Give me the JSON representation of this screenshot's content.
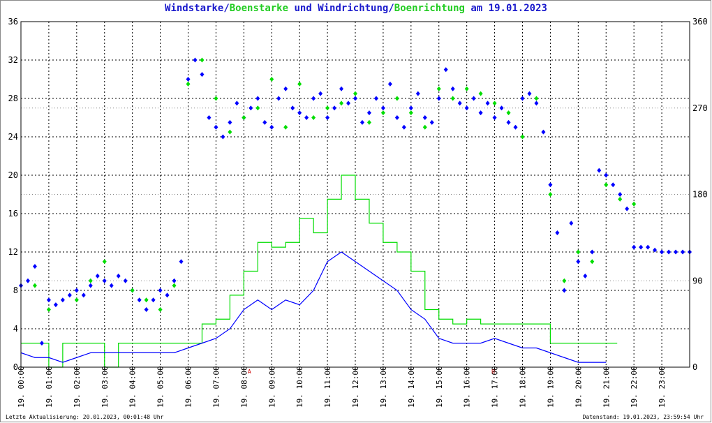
{
  "title": {
    "parts": [
      {
        "text": "Windstarke",
        "color": "#1a1acc"
      },
      {
        "text": "/",
        "color": "#1a1acc"
      },
      {
        "text": "Boenstarke",
        "color": "#22cc22"
      },
      {
        "text": " und ",
        "color": "#1a1acc"
      },
      {
        "text": "Windrichtung",
        "color": "#1a1acc"
      },
      {
        "text": "/",
        "color": "#1a1acc"
      },
      {
        "text": "Boenrichtung",
        "color": "#22cc22"
      },
      {
        "text": " am 19.01.2023",
        "color": "#1a1acc"
      }
    ]
  },
  "footer": {
    "left": "Letzte Aktualisierung: 20.01.2023, 00:01:48 Uhr",
    "right": "Datenstand: 19.01.2023, 23:59:54 Uhr"
  },
  "colors": {
    "wind": "#0000ff",
    "gust": "#00dd00",
    "grid": "#000000",
    "marker": "#cc0000"
  },
  "chart_data": {
    "type": "line",
    "x_ticks": [
      "19. 00:00",
      "19. 01:00",
      "19. 02:00",
      "19. 03:00",
      "19. 04:00",
      "19. 05:00",
      "19. 06:00",
      "19. 07:00",
      "19. 08:00",
      "19. 09:00",
      "19. 10:00",
      "19. 11:00",
      "19. 12:00",
      "19. 13:00",
      "19. 14:00",
      "19. 15:00",
      "19. 16:00",
      "19. 17:00",
      "19. 18:00",
      "19. 19:00",
      "19. 20:00",
      "19. 21:00",
      "19. 22:00",
      "19. 23:00"
    ],
    "xlim_hours": [
      0,
      24
    ],
    "y_left": {
      "min": 0,
      "max": 36,
      "ticks": [
        0,
        4,
        8,
        12,
        16,
        20,
        24,
        28,
        32,
        36
      ]
    },
    "y_right": {
      "min": 0,
      "max": 360,
      "ticks": [
        0,
        90,
        180,
        270,
        360
      ]
    },
    "grid": true,
    "markers": [
      {
        "label": "A",
        "hour": 8.2
      },
      {
        "label": "U",
        "hour": 16.95
      }
    ],
    "series": [
      {
        "name": "Windstarke",
        "axis": "left",
        "style": "line",
        "x": [
          0,
          0.5,
          1,
          1.5,
          2,
          2.5,
          3,
          3.5,
          4,
          4.5,
          5,
          5.5,
          6,
          6.5,
          7,
          7.5,
          8,
          8.5,
          9,
          9.5,
          10,
          10.5,
          11,
          11.5,
          12,
          12.5,
          13,
          13.5,
          14,
          14.5,
          15,
          15.5,
          16,
          16.5,
          17,
          17.5,
          18,
          18.5,
          19,
          19.5,
          20,
          20.5,
          21
        ],
        "y": [
          1.5,
          1,
          1,
          0.5,
          1,
          1.5,
          1.5,
          1.5,
          1.5,
          1.5,
          1.5,
          1.5,
          2,
          2.5,
          3,
          4,
          6,
          7,
          6,
          7,
          6.5,
          8,
          11,
          12,
          11,
          10,
          9,
          8,
          6,
          5,
          3,
          2.5,
          2.5,
          2.5,
          3,
          2.5,
          2,
          2,
          1.5,
          1,
          0.5,
          0.5,
          0.5
        ]
      },
      {
        "name": "Boenstarke",
        "axis": "left",
        "style": "step",
        "x": [
          0,
          0.5,
          1,
          1.5,
          2,
          2.5,
          3,
          3.5,
          4,
          4.5,
          5,
          5.5,
          6,
          6.5,
          7,
          7.5,
          8,
          8.5,
          9,
          9.5,
          10,
          10.5,
          11,
          11.5,
          12,
          12.5,
          13,
          13.5,
          14,
          14.5,
          15,
          15.5,
          16,
          16.5,
          17,
          17.5,
          18,
          18.5,
          19,
          19.5,
          20,
          20.5,
          21,
          21.4
        ],
        "y": [
          2.5,
          2.5,
          0,
          2.5,
          2.5,
          2.5,
          0,
          2.5,
          2.5,
          2.5,
          2.5,
          2.5,
          2.5,
          4.5,
          5,
          7.5,
          10,
          13,
          12.5,
          13,
          15.5,
          14,
          17.5,
          20,
          17.5,
          15,
          13,
          12,
          10,
          6,
          5,
          4.5,
          5,
          4.5,
          4.5,
          4.5,
          4.5,
          4.5,
          2.5,
          2.5,
          2.5,
          2.5,
          2.5,
          2.5
        ]
      },
      {
        "name": "Windrichtung",
        "axis": "right",
        "style": "markers",
        "x": [
          0,
          0.25,
          0.5,
          0.75,
          1,
          1.25,
          1.5,
          1.75,
          2,
          2.25,
          2.5,
          2.75,
          3,
          3.25,
          3.5,
          3.75,
          4,
          4.25,
          4.5,
          4.75,
          5,
          5.25,
          5.5,
          5.75,
          6,
          6.25,
          6.5,
          6.75,
          7,
          7.25,
          7.5,
          7.75,
          8,
          8.25,
          8.5,
          8.75,
          9,
          9.25,
          9.5,
          9.75,
          10,
          10.25,
          10.5,
          10.75,
          11,
          11.25,
          11.5,
          11.75,
          12,
          12.25,
          12.5,
          12.75,
          13,
          13.25,
          13.5,
          13.75,
          14,
          14.25,
          14.5,
          14.75,
          15,
          15.25,
          15.5,
          15.75,
          16,
          16.25,
          16.5,
          16.75,
          17,
          17.25,
          17.5,
          17.75,
          18,
          18.25,
          18.5,
          18.75,
          19,
          19.25,
          19.5,
          19.75,
          20,
          20.25,
          20.5,
          20.75,
          21,
          21.25,
          21.5,
          21.75,
          22,
          22.25,
          22.5,
          22.75,
          23,
          23.25,
          23.5,
          23.75,
          24
        ],
        "y": [
          85,
          90,
          105,
          25,
          70,
          65,
          70,
          75,
          80,
          75,
          85,
          95,
          90,
          85,
          95,
          90,
          80,
          70,
          60,
          70,
          80,
          75,
          90,
          110,
          300,
          320,
          305,
          260,
          250,
          240,
          255,
          275,
          260,
          270,
          280,
          255,
          250,
          280,
          290,
          270,
          265,
          260,
          280,
          285,
          260,
          270,
          290,
          275,
          280,
          255,
          265,
          280,
          270,
          295,
          260,
          250,
          270,
          285,
          260,
          255,
          280,
          310,
          290,
          275,
          270,
          280,
          265,
          275,
          260,
          270,
          255,
          250,
          280,
          285,
          275,
          245,
          190,
          140,
          80,
          150,
          110,
          95,
          120,
          205,
          200,
          190,
          180,
          165,
          125,
          125,
          125,
          122,
          120,
          120,
          120,
          120,
          120
        ]
      },
      {
        "name": "Boenrichtung",
        "axis": "right",
        "style": "markers",
        "x": [
          0.5,
          1,
          2,
          2.5,
          3,
          4,
          4.5,
          5,
          5.5,
          6,
          6.5,
          7,
          7.5,
          8,
          8.5,
          9,
          9.5,
          10,
          10.5,
          11,
          11.5,
          12,
          12.5,
          13,
          13.5,
          14,
          14.5,
          15,
          15.5,
          16,
          16.5,
          17,
          17.5,
          18,
          18.5,
          19,
          19.5,
          20,
          20.5,
          21,
          21.5,
          22
        ],
        "y": [
          85,
          60,
          70,
          90,
          110,
          80,
          70,
          60,
          85,
          295,
          320,
          280,
          245,
          260,
          270,
          300,
          250,
          295,
          260,
          270,
          275,
          285,
          255,
          265,
          280,
          265,
          250,
          290,
          280,
          290,
          285,
          275,
          265,
          240,
          280,
          180,
          90,
          120,
          110,
          190,
          175,
          170
        ]
      }
    ]
  }
}
